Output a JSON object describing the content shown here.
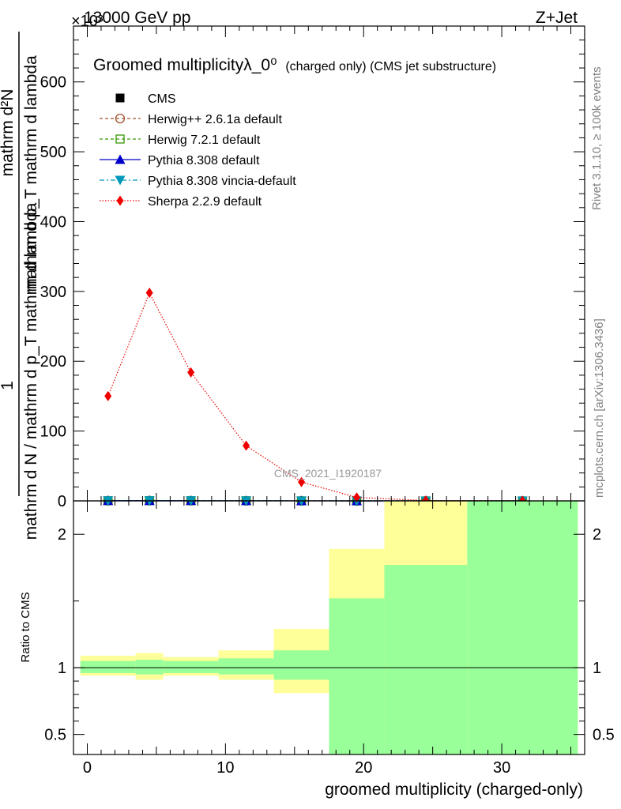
{
  "header": {
    "left": "13000 GeV pp",
    "right": "Z+Jet",
    "exponent": "×10³"
  },
  "side_labels": {
    "rivet": "Rivet 3.1.10, ≥ 100k events",
    "mcplots": "mcplots.cern.ch [arXiv:1306.3436]"
  },
  "watermark": "CMS_2021_I1920187",
  "chart_data": [
    {
      "type": "line",
      "panel": "main",
      "title": "Groomed multiplicityλ_0⁰",
      "title_suffix": "(charged only) (CMS jet substructure)",
      "ylabel": {
        "numerator_top": "mathrm d²N",
        "numerator_bottom": "mathrm d p_T mathrm d lambda",
        "prefix_one": "1",
        "denominator": "mathrm d N / mathrm d p_T mathrm d lambda"
      },
      "ylim": [
        0,
        680
      ],
      "y_scale_note": "×10³",
      "xlim": [
        -1,
        36
      ],
      "yticks": [
        0,
        100,
        200,
        300,
        400,
        500,
        600
      ],
      "legend": [
        "CMS",
        "Herwig++ 2.6.1a default",
        "Herwig 7.2.1 default",
        "Pythia 8.308 default",
        "Pythia 8.308 vincia-default",
        "Sherpa 2.2.9 default"
      ],
      "legend_placement": "top-left",
      "series": [
        {
          "name": "CMS",
          "color": "#000000",
          "marker": "square",
          "x": [
            1.5,
            4.5,
            7.5,
            11.5,
            15.5,
            19.5,
            24.5,
            31.5
          ],
          "y": [
            0.25,
            0.35,
            0.25,
            0.15,
            0.07,
            0.03,
            0.01,
            0.002
          ]
        },
        {
          "name": "Herwig++ 2.6.1a default",
          "color": "#a0522d",
          "marker": "circle-open",
          "dash": "4,3",
          "x": [
            1.5,
            4.5,
            7.5,
            11.5,
            15.5,
            19.5,
            24.5,
            31.5
          ],
          "y": [
            0.25,
            0.35,
            0.25,
            0.15,
            0.07,
            0.03,
            0.01,
            0.002
          ]
        },
        {
          "name": "Herwig 7.2.1 default",
          "color": "#339900",
          "marker": "square-open",
          "dash": "4,3",
          "x": [
            1.5,
            4.5,
            7.5,
            11.5,
            15.5,
            19.5,
            24.5,
            31.5
          ],
          "y": [
            0.25,
            0.35,
            0.25,
            0.15,
            0.07,
            0.03,
            0.01,
            0.002
          ]
        },
        {
          "name": "Pythia 8.308 default",
          "color": "#0000cc",
          "marker": "triangle-up",
          "x": [
            1.5,
            4.5,
            7.5,
            11.5,
            15.5,
            19.5,
            24.5,
            31.5
          ],
          "y": [
            0.25,
            0.35,
            0.25,
            0.15,
            0.07,
            0.03,
            0.01,
            0.002
          ]
        },
        {
          "name": "Pythia 8.308 vincia-default",
          "color": "#0099bb",
          "marker": "triangle-down",
          "dash": "6,3,2,3",
          "x": [
            1.5,
            4.5,
            7.5,
            11.5,
            15.5,
            19.5,
            24.5,
            31.5
          ],
          "y": [
            0.25,
            0.35,
            0.25,
            0.15,
            0.07,
            0.03,
            0.01,
            0.002
          ]
        },
        {
          "name": "Sherpa 2.2.9 default",
          "color": "#ee0000",
          "marker": "diamond",
          "dash": "1.5,2",
          "x": [
            1.5,
            4.5,
            7.5,
            11.5,
            15.5,
            19.5,
            24.5,
            31.5
          ],
          "y": [
            150,
            298,
            184,
            79,
            27,
            5,
            0.5,
            0.05
          ]
        }
      ]
    },
    {
      "type": "area",
      "panel": "ratio",
      "xlabel": "groomed multiplicity (charged-only)",
      "ylabel": "Ratio to CMS",
      "ylim": [
        0.35,
        2.25
      ],
      "xlim": [
        -1,
        36
      ],
      "xticks": [
        0,
        10,
        20,
        30
      ],
      "yticks": [
        0.5,
        1,
        2
      ],
      "reference": 1,
      "bins": [
        {
          "lo": -0.5,
          "hi": 3.5,
          "stat": [
            0.96,
            1.05
          ],
          "total": [
            0.94,
            1.09
          ]
        },
        {
          "lo": 3.5,
          "hi": 5.5,
          "stat": [
            0.95,
            1.06
          ],
          "total": [
            0.91,
            1.11
          ]
        },
        {
          "lo": 5.5,
          "hi": 9.5,
          "stat": [
            0.96,
            1.05
          ],
          "total": [
            0.94,
            1.08
          ]
        },
        {
          "lo": 9.5,
          "hi": 13.5,
          "stat": [
            0.95,
            1.07
          ],
          "total": [
            0.91,
            1.13
          ]
        },
        {
          "lo": 13.5,
          "hi": 17.5,
          "stat": [
            0.91,
            1.13
          ],
          "total": [
            0.81,
            1.29
          ]
        },
        {
          "lo": 17.5,
          "hi": 21.5,
          "stat": [
            0.35,
            1.52
          ],
          "total": [
            0.35,
            1.89
          ]
        },
        {
          "lo": 21.5,
          "hi": 27.5,
          "stat": [
            0.35,
            1.77
          ],
          "total": [
            0.35,
            2.25
          ]
        },
        {
          "lo": 27.5,
          "hi": 35.5,
          "stat": [
            0.35,
            2.25
          ],
          "total": [
            0.35,
            2.25
          ]
        }
      ],
      "colors": {
        "stat": "#99ff99",
        "total": "#ffff99"
      }
    }
  ]
}
